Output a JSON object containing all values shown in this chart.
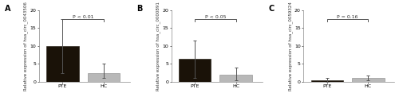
{
  "panels": [
    {
      "label": "A",
      "ylabel": "Relative expression of hsa_circ_0043506",
      "pte_mean": 10.0,
      "pte_err_low": 7.5,
      "pte_err_high": 7.5,
      "hc_mean": 2.5,
      "hc_err_low": 1.5,
      "hc_err_high": 2.5,
      "pvalue": "P < 0.01",
      "ylim": [
        0,
        20
      ],
      "yticks": [
        0,
        5,
        10,
        15,
        20
      ]
    },
    {
      "label": "B",
      "ylabel": "Relative expression of hsa_circ_0000891",
      "pte_mean": 6.5,
      "pte_err_low": 5.5,
      "pte_err_high": 5.0,
      "hc_mean": 2.0,
      "hc_err_low": 1.5,
      "hc_err_high": 2.0,
      "pvalue": "P < 0.05",
      "ylim": [
        0,
        20
      ],
      "yticks": [
        0,
        5,
        10,
        15,
        20
      ]
    },
    {
      "label": "C",
      "ylabel": "Relative expression of hsa_circ_0059324",
      "pte_mean": 0.5,
      "pte_err_low": 0.4,
      "pte_err_high": 0.5,
      "hc_mean": 1.0,
      "hc_err_low": 0.6,
      "hc_err_high": 0.8,
      "pvalue": "P = 0.16",
      "ylim": [
        0,
        20
      ],
      "yticks": [
        0,
        5,
        10,
        15,
        20
      ]
    }
  ],
  "bar_colors": [
    "#1a1208",
    "#b8b8b8"
  ],
  "categories": [
    "PTE",
    "HC"
  ],
  "bar_width": 0.55,
  "background_color": "#ffffff",
  "ylabel_fontsize": 4.0,
  "tick_fontsize": 4.5,
  "pval_fontsize": 4.5,
  "panel_label_fontsize": 7,
  "xtick_fontsize": 4.5
}
